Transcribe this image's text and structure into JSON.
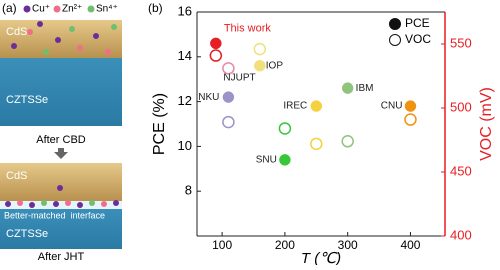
{
  "panel_labels": [
    "(a)",
    "(b)"
  ],
  "schematic": {
    "legend": [
      "Cu⁺",
      "Zn²⁺",
      "Sn⁴⁺"
    ],
    "top": {
      "layers": [
        "CdS",
        "CZTSSe"
      ],
      "caption": "After CBD"
    },
    "bottom": {
      "layers": [
        "CdS",
        "CZTSSe"
      ],
      "interface": "Better-matched  interface",
      "caption": "After JHT"
    }
  },
  "chart_data": {
    "type": "scatter",
    "xlabel": "T (℃)",
    "ylabel": "PCE (%)",
    "y2label": "VOC (mV)",
    "xlim": [
      60,
      455
    ],
    "xticks": [
      100,
      200,
      300,
      400
    ],
    "ylim": [
      6,
      16
    ],
    "yticks": [
      8,
      10,
      12,
      14,
      16
    ],
    "y2lim": [
      400,
      575
    ],
    "y2ticks": [
      400,
      450,
      500,
      550
    ],
    "y2color": "#e61e25",
    "legend": "upper right",
    "x": [
      90,
      110,
      160,
      110,
      250,
      300,
      200,
      400
    ],
    "point_labels": [
      "This work",
      "NJUPT",
      "IOP",
      "NKU",
      "IREC",
      "IBM",
      "SNU",
      "CNU"
    ],
    "point_colors": [
      "#e61e25",
      "#e98aa6",
      "#f0e07a",
      "#9c93c9",
      "#f3d13f",
      "#8ec47c",
      "#37c737",
      "#f0920f"
    ],
    "series": [
      {
        "name": "PCE",
        "color": "#111111",
        "marker": "filled",
        "values": [
          14.6,
          13.5,
          13.6,
          12.2,
          11.8,
          12.6,
          9.4,
          11.8
        ]
      },
      {
        "name": "VOC",
        "color": "#111111",
        "marker": "open",
        "axis": "y2",
        "values": [
          541,
          531,
          546,
          489,
          472,
          474,
          484,
          491
        ]
      }
    ]
  }
}
